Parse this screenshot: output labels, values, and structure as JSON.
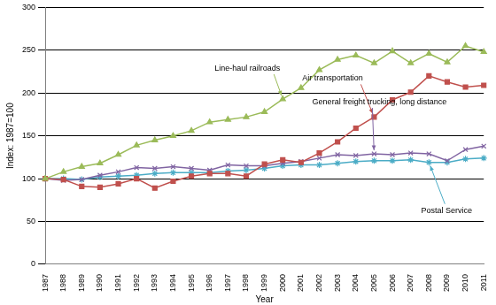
{
  "chart_data": {
    "type": "line",
    "x_label": "Year",
    "y_label": "Index: 1987=100",
    "categories": [
      "1987",
      "1988",
      "1989",
      "1990",
      "1991",
      "1992",
      "1993",
      "1994",
      "1995",
      "1996",
      "1997",
      "1998",
      "1999",
      "2000",
      "2001",
      "2002",
      "2003",
      "2004",
      "2005",
      "2006",
      "2007",
      "2008",
      "2009",
      "2010",
      "2011"
    ],
    "series": [
      {
        "name": "Line-haul railroads",
        "color": "#9bbb59",
        "marker": "triangle",
        "values": [
          100,
          108,
          114,
          118,
          128,
          139,
          145,
          150,
          156,
          166,
          169,
          172,
          178,
          193,
          206,
          227,
          239,
          244,
          235,
          249,
          235,
          246,
          236,
          255,
          248
        ]
      },
      {
        "name": "Air transportation",
        "color": "#c0504d",
        "marker": "square",
        "values": [
          100,
          99,
          91,
          90,
          94,
          100,
          89,
          97,
          103,
          106,
          106,
          103,
          117,
          122,
          119,
          130,
          143,
          159,
          172,
          192,
          201,
          220,
          213,
          207,
          209
        ]
      },
      {
        "name": "General freight trucking, long distance",
        "color": "#8064a2",
        "marker": "x",
        "values": [
          100,
          98,
          99,
          104,
          108,
          113,
          112,
          114,
          112,
          110,
          116,
          115,
          115,
          118,
          120,
          124,
          128,
          127,
          129,
          128,
          130,
          129,
          121,
          134,
          138
        ]
      },
      {
        "name": "Postal Service",
        "color": "#4bacc6",
        "marker": "star",
        "values": [
          100,
          100,
          99,
          102,
          103,
          104,
          106,
          107,
          107,
          107,
          109,
          110,
          112,
          115,
          116,
          116,
          118,
          120,
          121,
          121,
          122,
          119,
          119,
          123,
          124
        ]
      }
    ],
    "ylim": [
      0,
      300
    ],
    "yticks": [
      0,
      50,
      100,
      150,
      200,
      250,
      300
    ],
    "grid": true
  }
}
